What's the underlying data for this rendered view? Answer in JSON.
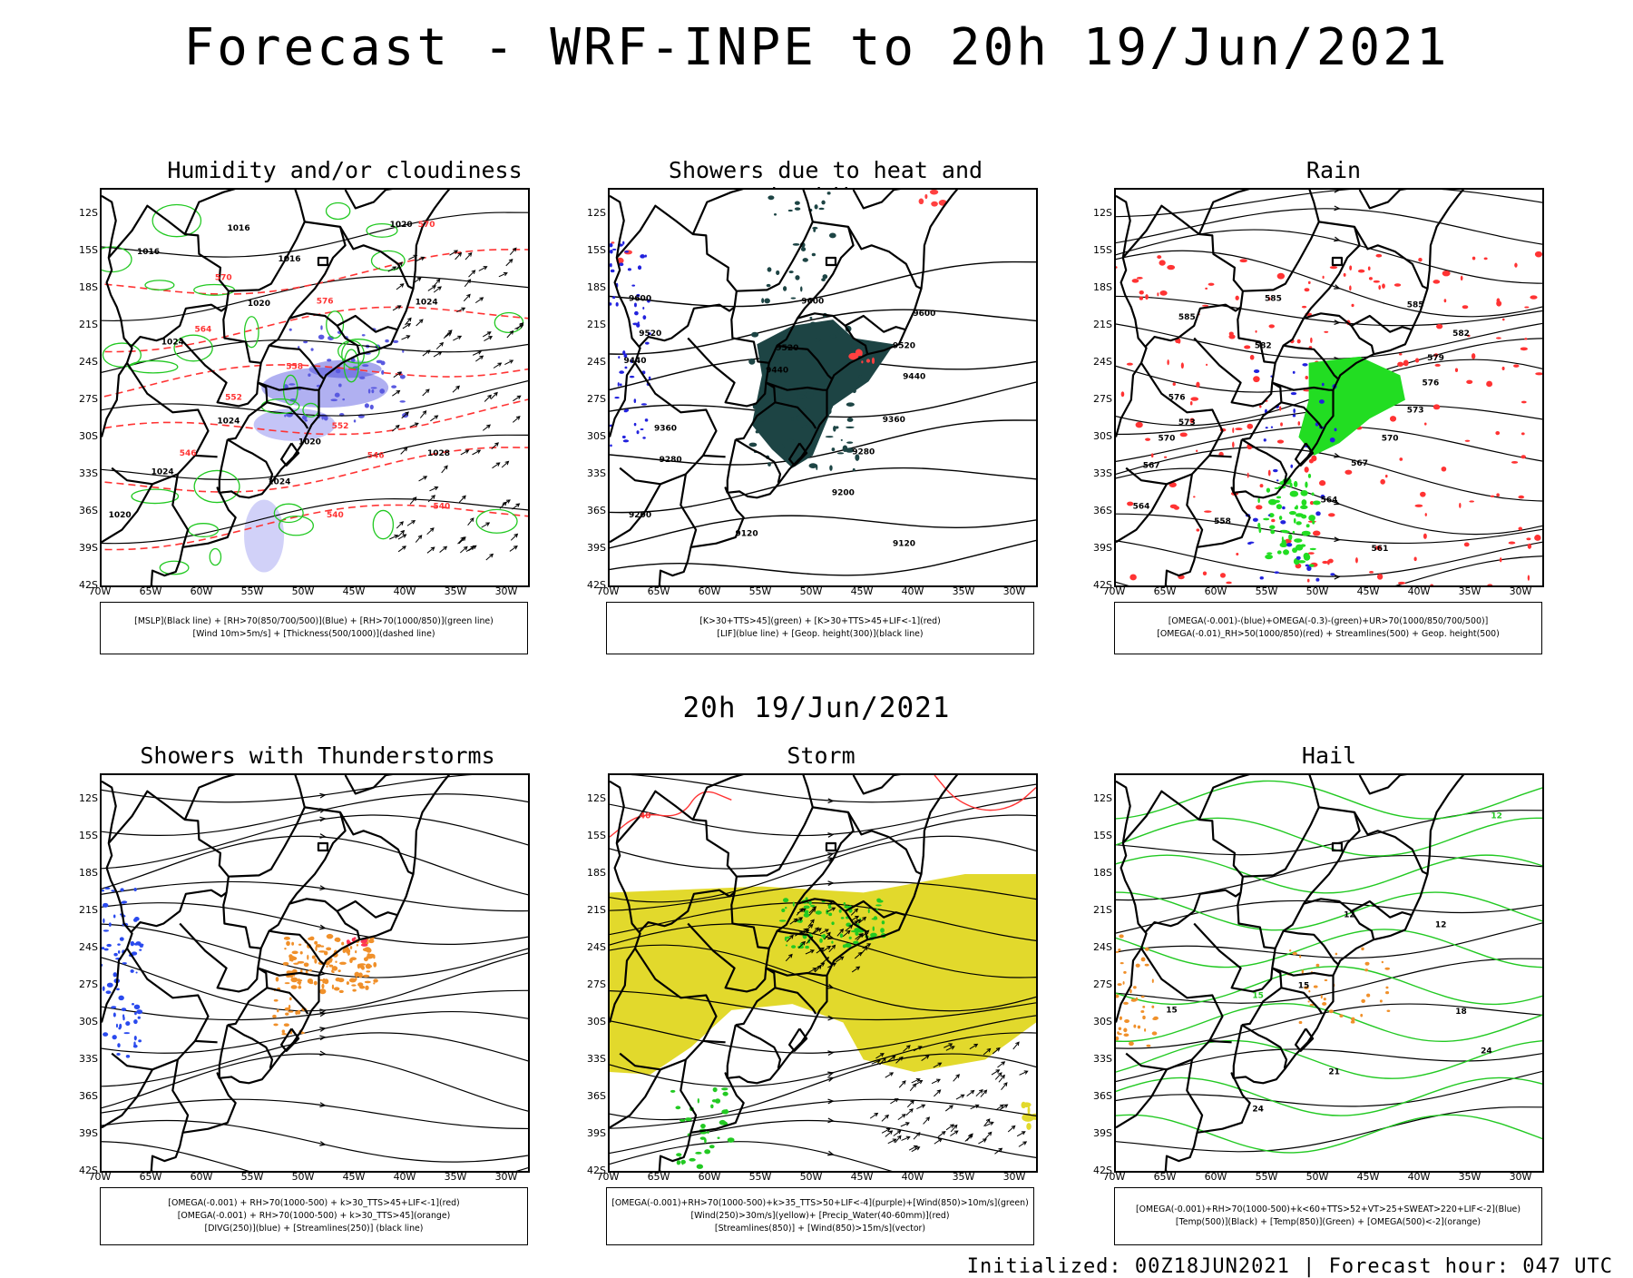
{
  "title": "Forecast - WRF-INPE to 20h 19/Jun/2021",
  "subtitle": "20h 19/Jun/2021",
  "footer": "Initialized: 00Z18JUN2021 | Forecast hour: 047 UTC",
  "axis": {
    "lat_labels": [
      "12S",
      "15S",
      "18S",
      "21S",
      "24S",
      "27S",
      "30S",
      "33S",
      "36S",
      "39S",
      "42S"
    ],
    "lon_labels": [
      "70W",
      "65W",
      "60W",
      "55W",
      "50W",
      "45W",
      "40W",
      "35W",
      "30W"
    ]
  },
  "panels": [
    {
      "title": "Humidity and/or cloudiness",
      "legend": [
        "[MSLP](Black line) + [RH>70(850/700/500)](Blue) + [RH>70(1000/850)](green line)",
        "[Wind 10m>5m/s] + [Thickness(500/1000)](dashed line)"
      ],
      "labels": [
        {
          "t": "1016",
          "c": "#000000",
          "lon": -65.4,
          "lat": -15.2
        },
        {
          "t": "1016",
          "c": "#000000",
          "lon": -56.5,
          "lat": -13.3
        },
        {
          "t": "1016",
          "c": "#000000",
          "lon": -51.5,
          "lat": -15.8
        },
        {
          "t": "1020",
          "c": "#000000",
          "lon": -40.5,
          "lat": -13.0
        },
        {
          "t": "1020",
          "c": "#000000",
          "lon": -54.5,
          "lat": -19.4
        },
        {
          "t": "1024",
          "c": "#000000",
          "lon": -38.0,
          "lat": -19.3
        },
        {
          "t": "1024",
          "c": "#000000",
          "lon": -63.0,
          "lat": -22.5
        },
        {
          "t": "1024",
          "c": "#000000",
          "lon": -57.5,
          "lat": -28.9
        },
        {
          "t": "1020",
          "c": "#000000",
          "lon": -49.5,
          "lat": -30.6
        },
        {
          "t": "1024",
          "c": "#000000",
          "lon": -52.5,
          "lat": -33.8
        },
        {
          "t": "1028",
          "c": "#000000",
          "lon": -36.8,
          "lat": -31.5
        },
        {
          "t": "1024",
          "c": "#000000",
          "lon": -64.0,
          "lat": -33.0
        },
        {
          "t": "1020",
          "c": "#000000",
          "lon": -68.2,
          "lat": -36.5
        },
        {
          "t": "570",
          "c": "#ff3333",
          "lon": -38.0,
          "lat": -13.0
        },
        {
          "t": "570",
          "c": "#ff3333",
          "lon": -58.0,
          "lat": -17.3
        },
        {
          "t": "576",
          "c": "#ff3333",
          "lon": -48.0,
          "lat": -19.2
        },
        {
          "t": "564",
          "c": "#ff3333",
          "lon": -60.0,
          "lat": -21.5
        },
        {
          "t": "558",
          "c": "#ff3333",
          "lon": -51.0,
          "lat": -24.5
        },
        {
          "t": "552",
          "c": "#ff3333",
          "lon": -57.0,
          "lat": -27.0
        },
        {
          "t": "552",
          "c": "#ff3333",
          "lon": -46.5,
          "lat": -29.3
        },
        {
          "t": "546",
          "c": "#ff3333",
          "lon": -61.5,
          "lat": -31.5
        },
        {
          "t": "546",
          "c": "#ff3333",
          "lon": -43.0,
          "lat": -31.7
        },
        {
          "t": "540",
          "c": "#ff3333",
          "lon": -47.0,
          "lat": -36.5
        },
        {
          "t": "540",
          "c": "#ff3333",
          "lon": -36.5,
          "lat": -35.8
        }
      ]
    },
    {
      "title": "Showers due to heat and humidity",
      "legend": [
        "[K>30+TTS>45](green) + [K>30+TTS>45+LIF<-1](red)",
        "[LIF](blue line) + [Geop. height(300)](black line)"
      ],
      "labels": [
        {
          "t": "9600",
          "c": "#000000",
          "lon": -67.0,
          "lat": -19.0
        },
        {
          "t": "9600",
          "c": "#000000",
          "lon": -50.0,
          "lat": -19.2
        },
        {
          "t": "9600",
          "c": "#000000",
          "lon": -39.0,
          "lat": -20.2
        },
        {
          "t": "9520",
          "c": "#000000",
          "lon": -66.0,
          "lat": -21.8
        },
        {
          "t": "9520",
          "c": "#000000",
          "lon": -52.5,
          "lat": -23.0
        },
        {
          "t": "9520",
          "c": "#000000",
          "lon": -41.0,
          "lat": -22.8
        },
        {
          "t": "9440",
          "c": "#000000",
          "lon": -67.5,
          "lat": -24.0
        },
        {
          "t": "9440",
          "c": "#000000",
          "lon": -53.5,
          "lat": -24.8
        },
        {
          "t": "9440",
          "c": "#000000",
          "lon": -40.0,
          "lat": -25.3
        },
        {
          "t": "9360",
          "c": "#000000",
          "lon": -64.5,
          "lat": -29.5
        },
        {
          "t": "9360",
          "c": "#000000",
          "lon": -42.0,
          "lat": -28.8
        },
        {
          "t": "9280",
          "c": "#000000",
          "lon": -64.0,
          "lat": -32.0
        },
        {
          "t": "9280",
          "c": "#000000",
          "lon": -45.0,
          "lat": -31.4
        },
        {
          "t": "9200",
          "c": "#000000",
          "lon": -67.0,
          "lat": -36.5
        },
        {
          "t": "9200",
          "c": "#000000",
          "lon": -47.0,
          "lat": -34.7
        },
        {
          "t": "9120",
          "c": "#000000",
          "lon": -56.5,
          "lat": -38.0
        },
        {
          "t": "9120",
          "c": "#000000",
          "lon": -41.0,
          "lat": -38.8
        }
      ]
    },
    {
      "title": "Rain",
      "legend": [
        "[OMEGA(-0.001)-(blue)+OMEGA(-0.3)-(green)+UR>70(1000/850/700/500)]",
        "[OMEGA(-0.01)_RH>50(1000/850)(red) + Streamlines(500) + Geop. height(500)"
      ],
      "labels": [
        {
          "t": "585",
          "c": "#000000",
          "lon": -54.5,
          "lat": -19.0
        },
        {
          "t": "585",
          "c": "#000000",
          "lon": -40.5,
          "lat": -19.5
        },
        {
          "t": "585",
          "c": "#000000",
          "lon": -63.0,
          "lat": -20.5
        },
        {
          "t": "582",
          "c": "#000000",
          "lon": -36.0,
          "lat": -21.8
        },
        {
          "t": "582",
          "c": "#000000",
          "lon": -55.5,
          "lat": -22.8
        },
        {
          "t": "579",
          "c": "#000000",
          "lon": -38.5,
          "lat": -23.8
        },
        {
          "t": "576",
          "c": "#000000",
          "lon": -39.0,
          "lat": -25.8
        },
        {
          "t": "576",
          "c": "#000000",
          "lon": -64.0,
          "lat": -27.0
        },
        {
          "t": "573",
          "c": "#000000",
          "lon": -40.5,
          "lat": -28.0
        },
        {
          "t": "573",
          "c": "#000000",
          "lon": -63.0,
          "lat": -29.0
        },
        {
          "t": "570",
          "c": "#000000",
          "lon": -65.0,
          "lat": -30.3
        },
        {
          "t": "570",
          "c": "#000000",
          "lon": -43.0,
          "lat": -30.3
        },
        {
          "t": "567",
          "c": "#000000",
          "lon": -66.5,
          "lat": -32.5
        },
        {
          "t": "567",
          "c": "#000000",
          "lon": -46.0,
          "lat": -32.3
        },
        {
          "t": "564",
          "c": "#000000",
          "lon": -67.5,
          "lat": -35.8
        },
        {
          "t": "564",
          "c": "#000000",
          "lon": -49.0,
          "lat": -35.3
        },
        {
          "t": "561",
          "c": "#000000",
          "lon": -44.0,
          "lat": -39.2
        },
        {
          "t": "558",
          "c": "#000000",
          "lon": -59.5,
          "lat": -37.0
        }
      ]
    },
    {
      "title": "Showers with Thunderstorms",
      "legend": [
        "[OMEGA(-0.001) + RH>70(1000-500) + k>30_TTS>45+LIF<-1](red)",
        "[OMEGA(-0.001) + RH>70(1000-500) + k>30_TTS>45](orange)",
        "[DIVG(250)](blue) + [Streamlines(250)] (black line)"
      ],
      "labels": []
    },
    {
      "title": "Storm",
      "legend": [
        "[OMEGA(-0.001)+RH>70(1000-500)+k>35_TTS>50+LIF<-4](purple)+[Wind(850)>10m/s](green)",
        "[Wind(250)>30m/s](yellow)+ [Precip_Water(40-60mm)](red)",
        "[Streamlines(850)] + [Wind(850)>15m/s](vector)"
      ],
      "labels": [
        {
          "t": "40",
          "c": "#ff3333",
          "lon": -66.5,
          "lat": -13.5
        }
      ]
    },
    {
      "title": "Hail",
      "legend": [
        "[OMEGA(-0.001)+RH>70(1000-500)+k<60+TTS>52+VT>25+SWEAT>220+LIF<-2](Blue)",
        "[Temp(500)](Black) + [Temp(850)](Green) + [OMEGA(500)<-2](orange)"
      ],
      "labels": [
        {
          "t": "12",
          "c": "#000000",
          "lon": -47.0,
          "lat": -21.5
        },
        {
          "t": "12",
          "c": "#000000",
          "lon": -38.0,
          "lat": -22.3
        },
        {
          "t": "12",
          "c": "#22c922",
          "lon": -32.5,
          "lat": -13.5
        },
        {
          "t": "15",
          "c": "#000000",
          "lon": -51.5,
          "lat": -27.2
        },
        {
          "t": "15",
          "c": "#000000",
          "lon": -64.5,
          "lat": -29.2
        },
        {
          "t": "15",
          "c": "#22c922",
          "lon": -56.0,
          "lat": -28.0
        },
        {
          "t": "18",
          "c": "#000000",
          "lon": -36.0,
          "lat": -29.3
        },
        {
          "t": "21",
          "c": "#000000",
          "lon": -48.5,
          "lat": -34.2
        },
        {
          "t": "24",
          "c": "#000000",
          "lon": -56.0,
          "lat": -37.2
        },
        {
          "t": "24",
          "c": "#000000",
          "lon": -33.5,
          "lat": -32.5
        }
      ]
    }
  ]
}
